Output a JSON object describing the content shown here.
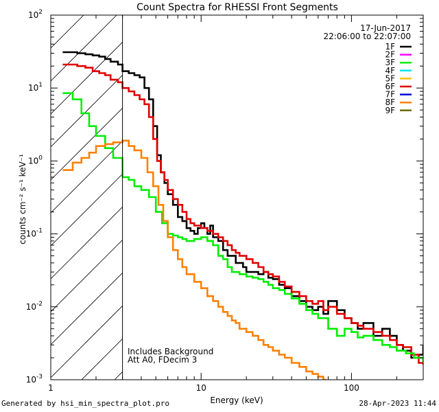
{
  "chart_data": {
    "type": "line",
    "title": "Count Spectra for RHESSI Front Segments",
    "xlabel": "Energy (keV)",
    "ylabel": "counts cm⁻² s⁻¹ keV⁻¹",
    "xscale": "log",
    "yscale": "log",
    "xlim": [
      1,
      300
    ],
    "ylim": [
      0.001,
      100
    ],
    "x_ticks": [
      {
        "value": 1,
        "label": "1"
      },
      {
        "value": 10,
        "label": "10"
      },
      {
        "value": 100,
        "label": "100"
      }
    ],
    "y_ticks": [
      {
        "value": 0.001,
        "base": "10",
        "exp": "-3"
      },
      {
        "value": 0.01,
        "base": "10",
        "exp": "-2"
      },
      {
        "value": 0.1,
        "base": "10",
        "exp": "-1"
      },
      {
        "value": 1,
        "base": "10",
        "exp": "0"
      },
      {
        "value": 10,
        "base": "10",
        "exp": "1"
      },
      {
        "value": 100,
        "base": "10",
        "exp": "2"
      }
    ],
    "date": "17-Jun-2017",
    "time_range": "22:06:00 to 22:07:00",
    "annotations": [
      "Includes Background",
      "Att A0, FDecim 3"
    ],
    "cutoff_energy": 3,
    "hatched_range": [
      1,
      3
    ],
    "legend": [
      {
        "name": "1F",
        "color": "#000000"
      },
      {
        "name": "2F",
        "color": "#ff00ff"
      },
      {
        "name": "3F",
        "color": "#00ee00"
      },
      {
        "name": "4F",
        "color": "#00e5ee"
      },
      {
        "name": "5F",
        "color": "#ffc000"
      },
      {
        "name": "6F",
        "color": "#e00000"
      },
      {
        "name": "7F",
        "color": "#0000dd"
      },
      {
        "name": "8F",
        "color": "#ff8000"
      },
      {
        "name": "9F",
        "color": "#6b6b00"
      }
    ],
    "series": [
      {
        "name": "1F",
        "color": "#000000",
        "points": [
          [
            1.2,
            31
          ],
          [
            1.5,
            30
          ],
          [
            1.7,
            29
          ],
          [
            1.9,
            28
          ],
          [
            2.1,
            27
          ],
          [
            2.3,
            25
          ],
          [
            2.5,
            23
          ],
          [
            2.8,
            21
          ],
          [
            3.0,
            17
          ],
          [
            3.3,
            16
          ],
          [
            3.6,
            15
          ],
          [
            3.9,
            14
          ],
          [
            4.2,
            10
          ],
          [
            4.5,
            7
          ],
          [
            4.8,
            3
          ],
          [
            5.1,
            1.2
          ],
          [
            5.4,
            0.7
          ],
          [
            5.7,
            0.5
          ],
          [
            6.0,
            0.35
          ],
          [
            6.5,
            0.25
          ],
          [
            7.0,
            0.17
          ],
          [
            7.5,
            0.15
          ],
          [
            8.0,
            0.12
          ],
          [
            8.5,
            0.11
          ],
          [
            9.0,
            0.1
          ],
          [
            9.5,
            0.12
          ],
          [
            10,
            0.14
          ],
          [
            10.5,
            0.12
          ],
          [
            11,
            0.1
          ],
          [
            11.5,
            0.13
          ],
          [
            12,
            0.09
          ],
          [
            13,
            0.08
          ],
          [
            14,
            0.06
          ],
          [
            15,
            0.05
          ],
          [
            16,
            0.05
          ],
          [
            17,
            0.04
          ],
          [
            18,
            0.04
          ],
          [
            19,
            0.035
          ],
          [
            20,
            0.03
          ],
          [
            22,
            0.03
          ],
          [
            24,
            0.028
          ],
          [
            26,
            0.03
          ],
          [
            28,
            0.025
          ],
          [
            30,
            0.024
          ],
          [
            33,
            0.02
          ],
          [
            36,
            0.018
          ],
          [
            40,
            0.014
          ],
          [
            45,
            0.012
          ],
          [
            50,
            0.01
          ],
          [
            55,
            0.009
          ],
          [
            60,
            0.01
          ],
          [
            65,
            0.008
          ],
          [
            70,
            0.012
          ],
          [
            80,
            0.009
          ],
          [
            90,
            0.007
          ],
          [
            100,
            0.006
          ],
          [
            110,
            0.005
          ],
          [
            120,
            0.006
          ],
          [
            140,
            0.004
          ],
          [
            160,
            0.005
          ],
          [
            180,
            0.004
          ],
          [
            200,
            0.003
          ],
          [
            220,
            0.0025
          ],
          [
            250,
            0.002
          ],
          [
            280,
            0.0022
          ],
          [
            300,
            0.003
          ]
        ]
      },
      {
        "name": "6F",
        "color": "#e00000",
        "points": [
          [
            1.2,
            21
          ],
          [
            1.5,
            20
          ],
          [
            1.7,
            19
          ],
          [
            1.9,
            17
          ],
          [
            2.1,
            16
          ],
          [
            2.3,
            15
          ],
          [
            2.5,
            13
          ],
          [
            2.8,
            12
          ],
          [
            3.0,
            10
          ],
          [
            3.3,
            9
          ],
          [
            3.6,
            8
          ],
          [
            3.9,
            7
          ],
          [
            4.2,
            6
          ],
          [
            4.5,
            4
          ],
          [
            4.8,
            2
          ],
          [
            5.1,
            1.0
          ],
          [
            5.4,
            0.7
          ],
          [
            5.7,
            0.55
          ],
          [
            6.0,
            0.4
          ],
          [
            6.5,
            0.3
          ],
          [
            7.0,
            0.25
          ],
          [
            7.5,
            0.2
          ],
          [
            8.0,
            0.16
          ],
          [
            8.5,
            0.14
          ],
          [
            9.0,
            0.13
          ],
          [
            9.5,
            0.13
          ],
          [
            10,
            0.12
          ],
          [
            11,
            0.11
          ],
          [
            12,
            0.1
          ],
          [
            13,
            0.09
          ],
          [
            14,
            0.08
          ],
          [
            15,
            0.07
          ],
          [
            16,
            0.06
          ],
          [
            17,
            0.055
          ],
          [
            18,
            0.05
          ],
          [
            20,
            0.045
          ],
          [
            22,
            0.04
          ],
          [
            24,
            0.035
          ],
          [
            26,
            0.03
          ],
          [
            28,
            0.028
          ],
          [
            30,
            0.026
          ],
          [
            33,
            0.022
          ],
          [
            36,
            0.019
          ],
          [
            40,
            0.016
          ],
          [
            45,
            0.014
          ],
          [
            50,
            0.012
          ],
          [
            55,
            0.011
          ],
          [
            60,
            0.012
          ],
          [
            65,
            0.009
          ],
          [
            70,
            0.01
          ],
          [
            80,
            0.008
          ],
          [
            90,
            0.007
          ],
          [
            100,
            0.006
          ],
          [
            110,
            0.0055
          ],
          [
            120,
            0.005
          ],
          [
            140,
            0.0045
          ],
          [
            160,
            0.004
          ],
          [
            180,
            0.0035
          ],
          [
            200,
            0.003
          ],
          [
            220,
            0.0028
          ],
          [
            250,
            0.0022
          ],
          [
            280,
            0.0017
          ],
          [
            300,
            0.0016
          ]
        ]
      },
      {
        "name": "3F",
        "color": "#00ee00",
        "points": [
          [
            1.2,
            8.5
          ],
          [
            1.4,
            7
          ],
          [
            1.6,
            4.5
          ],
          [
            1.8,
            3
          ],
          [
            2.0,
            2.2
          ],
          [
            2.3,
            1.5
          ],
          [
            2.6,
            1.1
          ],
          [
            3.0,
            0.6
          ],
          [
            3.3,
            0.55
          ],
          [
            3.6,
            0.45
          ],
          [
            4.0,
            0.4
          ],
          [
            4.5,
            0.32
          ],
          [
            5.0,
            0.2
          ],
          [
            5.5,
            0.14
          ],
          [
            6.0,
            0.1
          ],
          [
            6.5,
            0.095
          ],
          [
            7.0,
            0.09
          ],
          [
            7.5,
            0.085
          ],
          [
            8.0,
            0.08
          ],
          [
            9.0,
            0.085
          ],
          [
            10,
            0.09
          ],
          [
            11,
            0.08
          ],
          [
            12,
            0.07
          ],
          [
            13,
            0.05
          ],
          [
            14,
            0.045
          ],
          [
            15,
            0.035
          ],
          [
            16,
            0.03
          ],
          [
            17,
            0.03
          ],
          [
            18,
            0.028
          ],
          [
            20,
            0.026
          ],
          [
            22,
            0.025
          ],
          [
            24,
            0.024
          ],
          [
            26,
            0.022
          ],
          [
            28,
            0.02
          ],
          [
            30,
            0.018
          ],
          [
            33,
            0.017
          ],
          [
            36,
            0.015
          ],
          [
            40,
            0.013
          ],
          [
            45,
            0.011
          ],
          [
            50,
            0.009
          ],
          [
            55,
            0.008
          ],
          [
            60,
            0.007
          ],
          [
            70,
            0.005
          ],
          [
            80,
            0.004
          ],
          [
            90,
            0.005
          ],
          [
            100,
            0.0045
          ],
          [
            110,
            0.0038
          ],
          [
            120,
            0.004
          ],
          [
            140,
            0.0035
          ],
          [
            160,
            0.003
          ],
          [
            180,
            0.0028
          ],
          [
            200,
            0.0025
          ],
          [
            230,
            0.0023
          ],
          [
            260,
            0.002
          ],
          [
            300,
            0.0017
          ]
        ]
      },
      {
        "name": "8F",
        "color": "#ff8000",
        "points": [
          [
            1.2,
            0.75
          ],
          [
            1.4,
            0.95
          ],
          [
            1.6,
            1.1
          ],
          [
            1.8,
            1.3
          ],
          [
            2.0,
            1.6
          ],
          [
            2.3,
            1.7
          ],
          [
            2.6,
            1.8
          ],
          [
            3.0,
            1.9
          ],
          [
            3.3,
            1.6
          ],
          [
            3.6,
            1.4
          ],
          [
            4.0,
            1.1
          ],
          [
            4.4,
            0.7
          ],
          [
            4.8,
            0.45
          ],
          [
            5.2,
            0.25
          ],
          [
            5.6,
            0.15
          ],
          [
            6.0,
            0.09
          ],
          [
            6.5,
            0.06
          ],
          [
            7.0,
            0.045
          ],
          [
            7.5,
            0.035
          ],
          [
            8.0,
            0.028
          ],
          [
            9.0,
            0.022
          ],
          [
            10,
            0.018
          ],
          [
            11,
            0.014
          ],
          [
            12,
            0.012
          ],
          [
            13,
            0.01
          ],
          [
            14,
            0.0085
          ],
          [
            15,
            0.0075
          ],
          [
            16,
            0.0065
          ],
          [
            17,
            0.006
          ],
          [
            18,
            0.005
          ],
          [
            20,
            0.0045
          ],
          [
            22,
            0.004
          ],
          [
            24,
            0.0035
          ],
          [
            26,
            0.003
          ],
          [
            28,
            0.0028
          ],
          [
            30,
            0.0025
          ],
          [
            33,
            0.0022
          ],
          [
            36,
            0.002
          ],
          [
            40,
            0.0017
          ],
          [
            45,
            0.0015
          ],
          [
            50,
            0.0013
          ],
          [
            55,
            0.0012
          ],
          [
            60,
            0.0011
          ],
          [
            65,
            0.001
          ]
        ]
      }
    ]
  },
  "footer": {
    "generated_by": "Generated by hsi_min_spectra_plot.pro",
    "timestamp": "28-Apr-2023 11:44"
  }
}
